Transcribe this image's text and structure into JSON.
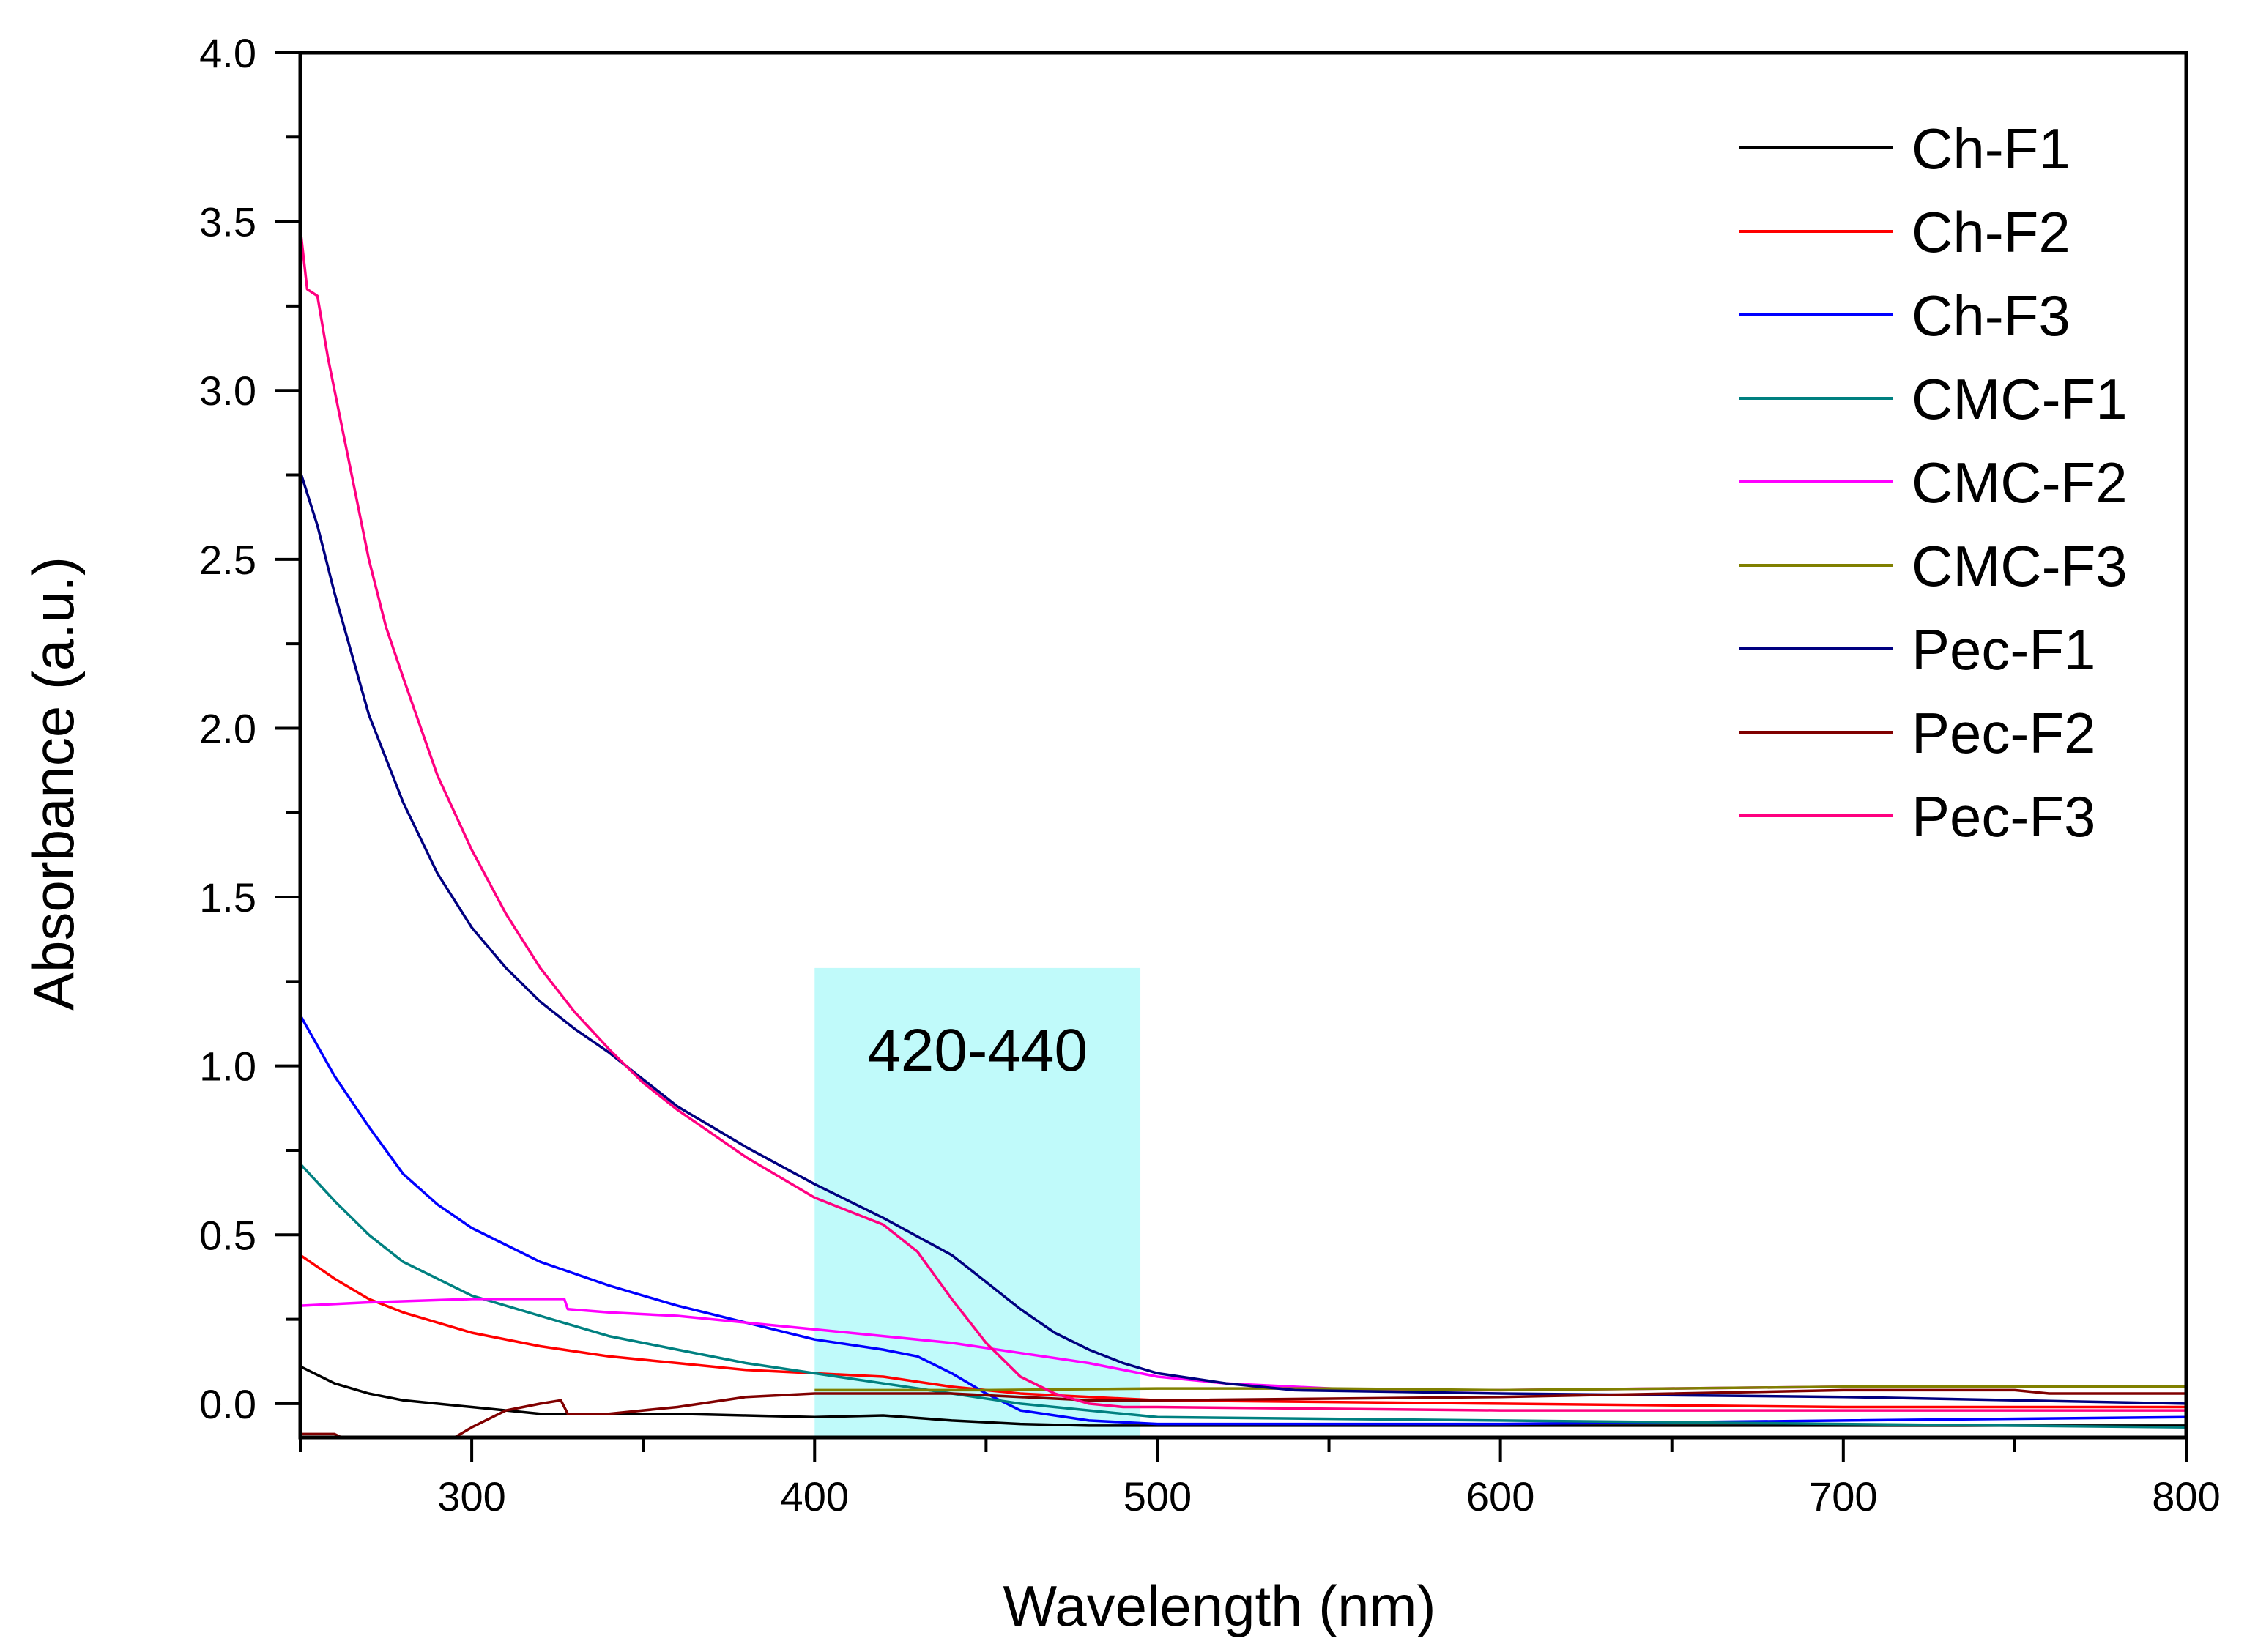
{
  "chart_data": {
    "type": "line",
    "title": "",
    "xlabel": "Wavelength (nm)",
    "ylabel": "Absorbance (a.u.)",
    "xlim": [
      250,
      800
    ],
    "ylim": [
      -0.1,
      4.0
    ],
    "x_ticks": [
      300,
      400,
      500,
      600,
      700,
      800
    ],
    "x_tick_labels": [
      "300",
      "400",
      "500",
      "600",
      "700",
      "800"
    ],
    "y_ticks": [
      0.0,
      0.5,
      1.0,
      1.5,
      2.0,
      2.5,
      3.0,
      3.5,
      4.0
    ],
    "y_tick_labels": [
      "0.0",
      "0.5",
      "1.0",
      "1.5",
      "2.0",
      "2.5",
      "3.0",
      "3.5",
      "4.0"
    ],
    "grid": false,
    "legend_position": "top-right",
    "annotation": {
      "label": "420-440",
      "x_range": [
        400,
        495
      ],
      "y_range": [
        -0.1,
        1.29
      ],
      "color": "#c0fafa"
    },
    "series": [
      {
        "name": "Ch-F1",
        "color": "#000000",
        "x": [
          250,
          260,
          270,
          280,
          300,
          320,
          340,
          360,
          380,
          400,
          420,
          440,
          460,
          480,
          500,
          600,
          700,
          800
        ],
        "y": [
          0.11,
          0.06,
          0.03,
          0.01,
          -0.01,
          -0.03,
          -0.03,
          -0.03,
          -0.035,
          -0.04,
          -0.035,
          -0.05,
          -0.06,
          -0.065,
          -0.065,
          -0.065,
          -0.065,
          -0.065
        ]
      },
      {
        "name": "Ch-F2",
        "color": "#ff0000",
        "x": [
          250,
          260,
          270,
          280,
          300,
          320,
          340,
          360,
          380,
          400,
          420,
          440,
          460,
          480,
          500,
          600,
          700,
          800
        ],
        "y": [
          0.44,
          0.37,
          0.31,
          0.27,
          0.21,
          0.17,
          0.14,
          0.12,
          0.1,
          0.09,
          0.08,
          0.05,
          0.03,
          0.02,
          0.01,
          0.0,
          -0.01,
          -0.01
        ]
      },
      {
        "name": "Ch-F3",
        "color": "#0000ff",
        "x": [
          250,
          260,
          270,
          280,
          290,
          300,
          320,
          340,
          360,
          380,
          400,
          420,
          430,
          440,
          450,
          460,
          480,
          500,
          600,
          700,
          800
        ],
        "y": [
          1.15,
          0.97,
          0.82,
          0.68,
          0.59,
          0.52,
          0.42,
          0.35,
          0.29,
          0.24,
          0.19,
          0.16,
          0.14,
          0.09,
          0.03,
          -0.02,
          -0.05,
          -0.06,
          -0.06,
          -0.05,
          -0.04
        ]
      },
      {
        "name": "CMC-F1",
        "color": "#008080",
        "x": [
          250,
          260,
          270,
          280,
          300,
          320,
          340,
          360,
          380,
          400,
          420,
          440,
          460,
          480,
          500,
          600,
          700,
          800
        ],
        "y": [
          0.71,
          0.6,
          0.5,
          0.42,
          0.32,
          0.26,
          0.2,
          0.16,
          0.12,
          0.09,
          0.06,
          0.03,
          0.0,
          -0.02,
          -0.04,
          -0.05,
          -0.06,
          -0.07
        ]
      },
      {
        "name": "CMC-F2",
        "color": "#ff00ff",
        "x": [
          250,
          270,
          300,
          320,
          327,
          328,
          340,
          360,
          380,
          400,
          420,
          440,
          460,
          480,
          500,
          520,
          560,
          600,
          700,
          800
        ],
        "y": [
          0.29,
          0.3,
          0.31,
          0.31,
          0.31,
          0.28,
          0.27,
          0.26,
          0.24,
          0.22,
          0.2,
          0.18,
          0.15,
          0.12,
          0.08,
          0.06,
          0.04,
          0.04,
          0.05,
          0.05
        ]
      },
      {
        "name": "CMC-F3",
        "color": "#808000",
        "x": [
          400,
          450,
          500,
          550,
          600,
          650,
          700,
          750,
          800
        ],
        "y": [
          0.04,
          0.04,
          0.045,
          0.045,
          0.04,
          0.045,
          0.05,
          0.05,
          0.05
        ]
      },
      {
        "name": "Pec-F1",
        "color": "#000080",
        "x": [
          250,
          255,
          260,
          265,
          270,
          280,
          290,
          300,
          310,
          320,
          330,
          340,
          350,
          360,
          380,
          400,
          420,
          440,
          450,
          460,
          470,
          480,
          490,
          500,
          520,
          540,
          600,
          700,
          800
        ],
        "y": [
          2.76,
          2.6,
          2.4,
          2.22,
          2.04,
          1.78,
          1.57,
          1.41,
          1.29,
          1.19,
          1.11,
          1.04,
          0.96,
          0.88,
          0.76,
          0.65,
          0.55,
          0.44,
          0.36,
          0.28,
          0.21,
          0.16,
          0.12,
          0.09,
          0.06,
          0.04,
          0.03,
          0.02,
          0.0
        ]
      },
      {
        "name": "Pec-F2",
        "color": "#800000",
        "x": [
          250,
          260,
          262,
          295,
          300,
          310,
          320,
          326,
          328,
          340,
          360,
          380,
          400,
          420,
          440,
          460,
          480,
          500,
          600,
          700,
          750,
          760,
          800
        ],
        "y": [
          -0.09,
          -0.09,
          -0.1,
          -0.1,
          -0.07,
          -0.02,
          0.0,
          0.01,
          -0.03,
          -0.03,
          -0.01,
          0.02,
          0.03,
          0.03,
          0.03,
          0.02,
          0.01,
          0.01,
          0.02,
          0.04,
          0.04,
          0.03,
          0.03
        ]
      },
      {
        "name": "Pec-F3",
        "color": "#ff0080",
        "x": [
          250,
          252,
          255,
          258,
          260,
          265,
          270,
          275,
          280,
          290,
          300,
          310,
          320,
          330,
          340,
          350,
          360,
          380,
          400,
          420,
          430,
          440,
          450,
          460,
          470,
          480,
          490,
          500,
          600,
          700,
          800
        ],
        "y": [
          3.48,
          3.3,
          3.28,
          3.1,
          3.0,
          2.75,
          2.5,
          2.3,
          2.15,
          1.86,
          1.64,
          1.45,
          1.29,
          1.16,
          1.05,
          0.95,
          0.87,
          0.73,
          0.61,
          0.53,
          0.45,
          0.31,
          0.18,
          0.08,
          0.03,
          0.0,
          -0.01,
          -0.01,
          -0.02,
          -0.02,
          -0.02
        ]
      }
    ]
  }
}
